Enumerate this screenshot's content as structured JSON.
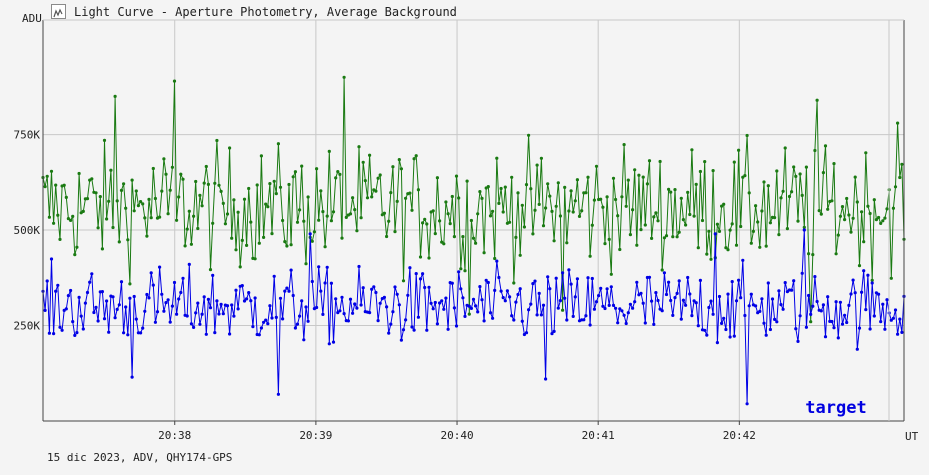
{
  "window": {
    "title": "Light Curve - Aperture Photometry, Average Background",
    "icon": "light-curve-icon"
  },
  "footer": {
    "text": "15 dic 2023, ADV, QHY174-GPS"
  },
  "chart_data": {
    "type": "line",
    "ylabel": "ADU",
    "xlabel": "UT",
    "y_ticks": [
      {
        "value": 250000,
        "label": "250K"
      },
      {
        "value": 500000,
        "label": "500K"
      },
      {
        "value": 750000,
        "label": "750K"
      }
    ],
    "x_ticks": [
      "20:38",
      "20:39",
      "20:40",
      "20:41",
      "20:42"
    ],
    "xlim": [
      "20:37:04",
      "20:43:10"
    ],
    "ylim": [
      0,
      1050000
    ],
    "grid": true,
    "annotation": "target",
    "colors": {
      "background": "#f4f4f4",
      "grid": "#c8c8c8",
      "axis": "#444444",
      "annotation": "#0000e0"
    },
    "series": [
      {
        "color": "#1a7a12",
        "mean": 560000,
        "spread": 95000,
        "points_per_minute": 400,
        "peaks": [
          {
            "t": "20:38:00",
            "v": 890000
          },
          {
            "t": "20:39:12",
            "v": 900000
          },
          {
            "t": "20:37:35",
            "v": 850000
          },
          {
            "t": "20:42:33",
            "v": 840000
          },
          {
            "t": "20:43:07",
            "v": 780000
          }
        ],
        "troughs": [
          {
            "t": "20:40:05",
            "v": 280000
          },
          {
            "t": "20:40:45",
            "v": 290000
          },
          {
            "t": "20:42:30",
            "v": 260000
          }
        ]
      },
      {
        "color": "#0000e6",
        "mean": 300000,
        "spread": 60000,
        "points_per_minute": 400,
        "peaks": [
          {
            "t": "20:38:58",
            "v": 490000
          },
          {
            "t": "20:41:50",
            "v": 490000
          },
          {
            "t": "20:42:28",
            "v": 500000
          }
        ],
        "troughs": [
          {
            "t": "20:38:44",
            "v": 70000
          },
          {
            "t": "20:42:03",
            "v": 45000
          },
          {
            "t": "20:37:42",
            "v": 115000
          },
          {
            "t": "20:40:38",
            "v": 110000
          }
        ]
      }
    ]
  }
}
